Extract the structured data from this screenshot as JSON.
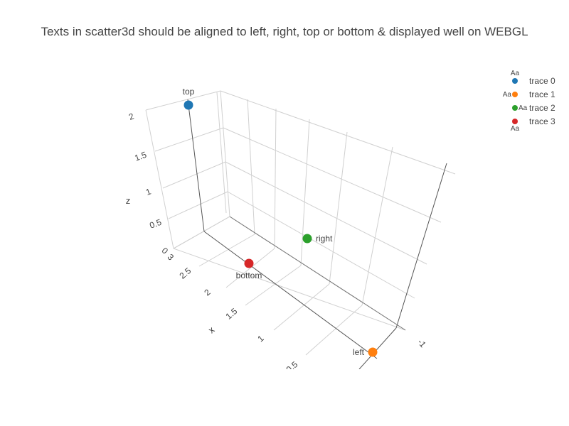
{
  "chart_data": {
    "type": "scatter",
    "projection": "3d",
    "title": "Texts in scatter3d should be aligned to left, right, top or bottom & displayed well on WEBGL",
    "axes": {
      "x": {
        "label": "x",
        "range": [
          0,
          3
        ],
        "ticks": [
          "0.5",
          "1",
          "1.5",
          "2",
          "2.5",
          "3"
        ]
      },
      "y": {
        "label": "",
        "ticks": [
          "-1"
        ]
      },
      "z": {
        "label": "z",
        "range": [
          0,
          2
        ],
        "ticks": [
          "0",
          "0.5",
          "1",
          "1.5",
          "2"
        ]
      }
    },
    "grid": true,
    "legend_position": "top-right",
    "series": [
      {
        "name": "trace 0",
        "color": "#1f77b4",
        "text": "top",
        "text_position": "top"
      },
      {
        "name": "trace 1",
        "color": "#ff7f0e",
        "text": "left",
        "text_position": "left"
      },
      {
        "name": "trace 2",
        "color": "#2ca02c",
        "text": "right",
        "text_position": "right"
      },
      {
        "name": "trace 3",
        "color": "#d62728",
        "text": "bottom",
        "text_position": "bottom"
      }
    ],
    "legend_sample_text": "Aa"
  }
}
